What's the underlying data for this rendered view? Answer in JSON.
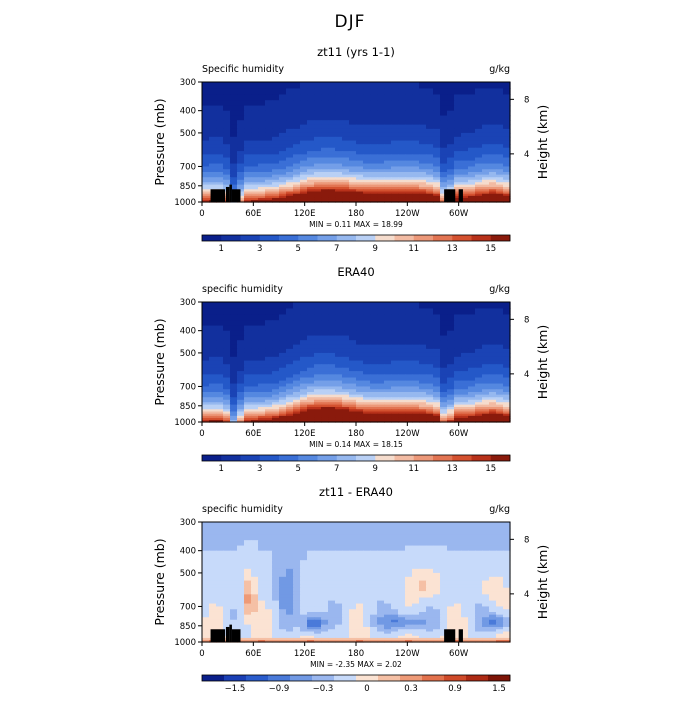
{
  "figure_title": "DJF",
  "chart_data": [
    {
      "type": "heatmap",
      "title": "zt11 (yrs 1-1)",
      "left_label": "Specific humidity",
      "right_label": "g/kg",
      "xlabel": "",
      "ylabel": "Pressure (mb)",
      "right_axis_label": "Height (km)",
      "x_ticks": [
        "0",
        "60E",
        "120E",
        "180",
        "120W",
        "60W"
      ],
      "y_ticks": [
        "300",
        "400",
        "500",
        "700",
        "850",
        "1000"
      ],
      "y_ticks_values": [
        300,
        400,
        500,
        700,
        850,
        1000
      ],
      "right_ticks": [
        "8",
        "4"
      ],
      "right_ticks_pressure": [
        357,
        617
      ],
      "ylim": [
        1000,
        300
      ],
      "xlim": [
        0,
        360
      ],
      "stats": {
        "min_label": "MIN =",
        "min": "0.11",
        "max_label": "MAX =",
        "max": "18.99"
      },
      "colorbar_labels": [
        "1",
        "3",
        "5",
        "7",
        "9",
        "11",
        "13",
        "15"
      ],
      "colorbar_levels": 16,
      "diverging": false,
      "topography": true
    },
    {
      "type": "heatmap",
      "title": "ERA40",
      "left_label": "specific humidity",
      "right_label": "g/kg",
      "xlabel": "",
      "ylabel": "Pressure (mb)",
      "right_axis_label": "Height (km)",
      "x_ticks": [
        "0",
        "60E",
        "120E",
        "180",
        "120W",
        "60W"
      ],
      "y_ticks": [
        "300",
        "400",
        "500",
        "700",
        "850",
        "1000"
      ],
      "y_ticks_values": [
        300,
        400,
        500,
        700,
        850,
        1000
      ],
      "right_ticks": [
        "8",
        "4"
      ],
      "right_ticks_pressure": [
        357,
        617
      ],
      "ylim": [
        1000,
        300
      ],
      "xlim": [
        0,
        360
      ],
      "stats": {
        "min_label": "MIN =",
        "min": "0.14",
        "max_label": "MAX =",
        "max": "18.15"
      },
      "colorbar_labels": [
        "1",
        "3",
        "5",
        "7",
        "9",
        "11",
        "13",
        "15"
      ],
      "colorbar_levels": 16,
      "diverging": false,
      "topography": false
    },
    {
      "type": "heatmap",
      "title": "zt11 - ERA40",
      "left_label": "specific humidity",
      "right_label": "g/kg",
      "xlabel": "",
      "ylabel": "Pressure (mb)",
      "right_axis_label": "Height (km)",
      "x_ticks": [
        "0",
        "60E",
        "120E",
        "180",
        "120W",
        "60W"
      ],
      "y_ticks": [
        "300",
        "400",
        "500",
        "700",
        "850",
        "1000"
      ],
      "y_ticks_values": [
        300,
        400,
        500,
        700,
        850,
        1000
      ],
      "right_ticks": [
        "8",
        "4"
      ],
      "right_ticks_pressure": [
        357,
        617
      ],
      "ylim": [
        1000,
        300
      ],
      "xlim": [
        0,
        360
      ],
      "stats": {
        "min_label": "MIN =",
        "min": "-2.35",
        "max_label": "MAX =",
        "max": "2.02"
      },
      "colorbar_labels": [
        "−1.5",
        "−0.9",
        "−0.3",
        "0",
        "0.3",
        "0.9",
        "1.5"
      ],
      "colorbar_levels": 14,
      "diverging": true,
      "topography": true
    }
  ],
  "colors": {
    "seq": [
      "#0a1f8a",
      "#12309e",
      "#1a43b5",
      "#2458c8",
      "#3a6fd6",
      "#5588e0",
      "#749fe8",
      "#96b8ef",
      "#b9d0f5",
      "#f5dccd",
      "#f2bba3",
      "#ec9879",
      "#e27452",
      "#d4512f",
      "#b8311a",
      "#8a1a0c"
    ],
    "div": [
      "#0a1f8a",
      "#1a3fb5",
      "#2a5ccc",
      "#4a7ad9",
      "#7199e4",
      "#9ab7ef",
      "#c7dafa",
      "#fbe3d3",
      "#f5c0a5",
      "#ee9a77",
      "#e2714c",
      "#cf4a29",
      "#ad2a14",
      "#7d1407"
    ]
  }
}
